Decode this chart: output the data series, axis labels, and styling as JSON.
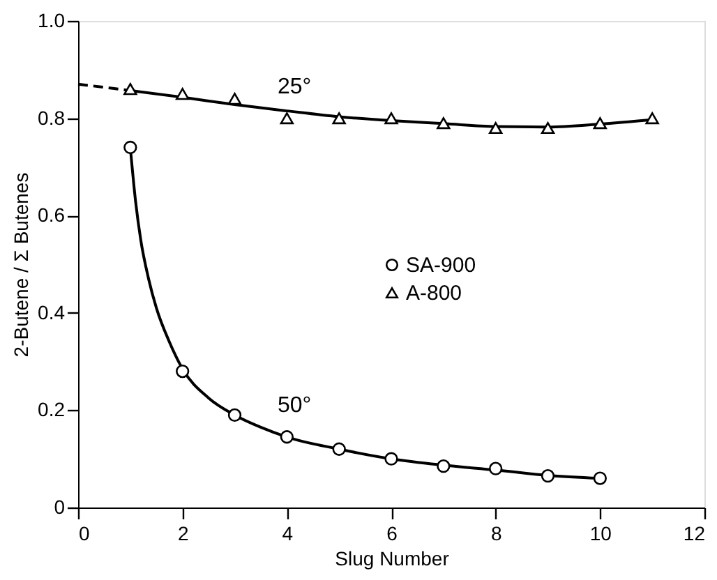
{
  "chart_data": {
    "type": "scatter",
    "xlabel": "Slug Number",
    "ylabel": "2-Butene / Σ Butenes",
    "xlim": [
      0,
      12
    ],
    "xticks": [
      0,
      2,
      4,
      6,
      8,
      10,
      12
    ],
    "ylim": [
      0,
      1
    ],
    "yticks": [
      0,
      0.2,
      0.4,
      0.6,
      0.8,
      {
        "value": 1,
        "label": "1.0"
      }
    ],
    "grid": false,
    "legend": "center",
    "annotations": [
      {
        "text": "25°",
        "x": 3.5,
        "y": 0.82
      },
      {
        "text": "50°",
        "x": 3.5,
        "y": 0.165
      }
    ],
    "series": [
      {
        "type": "line",
        "color": "#000000",
        "line_style": "dashed",
        "marker": "none",
        "x": [
          0,
          1
        ],
        "values": [
          0.87,
          0.857
        ]
      },
      {
        "type": "line",
        "color": "#000000",
        "line_style": "solid",
        "marker": "none",
        "x": [
          1,
          2,
          3,
          4,
          5,
          6,
          7,
          8,
          9,
          10,
          11
        ],
        "values": [
          0.857,
          0.843,
          0.828,
          0.815,
          0.803,
          0.795,
          0.789,
          0.783,
          0.782,
          0.788,
          0.797
        ]
      },
      {
        "type": "line",
        "color": "#000000",
        "line_style": "solid",
        "marker": "none",
        "x": [
          1,
          1.1,
          1.2,
          1.35,
          1.5,
          1.75,
          2,
          2.5,
          3,
          3.5,
          4,
          5,
          6,
          7,
          8,
          9,
          10
        ],
        "values": [
          0.74,
          0.63,
          0.55,
          0.47,
          0.41,
          0.34,
          0.285,
          0.225,
          0.19,
          0.165,
          0.145,
          0.12,
          0.1,
          0.087,
          0.077,
          0.066,
          0.06
        ]
      },
      {
        "name": "SA-900",
        "color": "#000000",
        "marker": "circle",
        "x": [
          1,
          2,
          3,
          4,
          5,
          6,
          7,
          8,
          9,
          10
        ],
        "values": [
          0.74,
          0.28,
          0.19,
          0.145,
          0.12,
          0.1,
          0.085,
          0.08,
          0.065,
          0.06
        ]
      },
      {
        "name": "A-800",
        "color": "#000000",
        "marker": "triangle",
        "x": [
          1,
          2,
          3,
          4,
          5,
          6,
          7,
          8,
          9,
          10,
          11
        ],
        "values": [
          0.86,
          0.85,
          0.84,
          0.8,
          0.8,
          0.8,
          0.79,
          0.78,
          0.78,
          0.79,
          0.8
        ]
      }
    ]
  }
}
